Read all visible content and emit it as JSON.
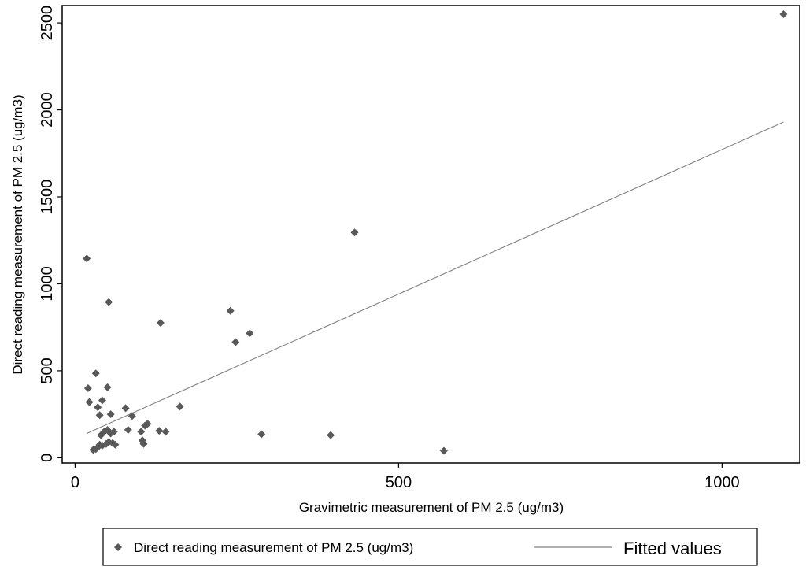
{
  "chart_data": {
    "type": "scatter",
    "title": "",
    "xlabel": "Gravimetric measurement of PM 2.5 (ug/m3)",
    "ylabel": "Direct reading measurement of PM 2.5 (ug/m3)",
    "xlim": [
      -20,
      1120
    ],
    "ylim": [
      -30,
      2600
    ],
    "xticks": [
      0,
      500,
      1000
    ],
    "yticks": [
      0,
      500,
      1000,
      1500,
      2000,
      2500
    ],
    "grid": false,
    "legend_position": "bottom",
    "series": [
      {
        "name": "Direct reading measurement of PM 2.5 (ug/m3)",
        "kind": "scatter",
        "marker": "diamond",
        "color": "#595959",
        "points": [
          [
            18,
            1145
          ],
          [
            20,
            400
          ],
          [
            22,
            320
          ],
          [
            32,
            485
          ],
          [
            35,
            290
          ],
          [
            38,
            245
          ],
          [
            42,
            330
          ],
          [
            50,
            405
          ],
          [
            52,
            895
          ],
          [
            55,
            250
          ],
          [
            28,
            45
          ],
          [
            32,
            50
          ],
          [
            35,
            60
          ],
          [
            38,
            75
          ],
          [
            40,
            130
          ],
          [
            42,
            70
          ],
          [
            45,
            150
          ],
          [
            48,
            80
          ],
          [
            50,
            160
          ],
          [
            52,
            90
          ],
          [
            55,
            140
          ],
          [
            58,
            85
          ],
          [
            60,
            150
          ],
          [
            62,
            75
          ],
          [
            78,
            285
          ],
          [
            82,
            160
          ],
          [
            88,
            240
          ],
          [
            102,
            150
          ],
          [
            104,
            100
          ],
          [
            106,
            80
          ],
          [
            108,
            185
          ],
          [
            112,
            195
          ],
          [
            130,
            155
          ],
          [
            132,
            775
          ],
          [
            140,
            150
          ],
          [
            162,
            295
          ],
          [
            240,
            845
          ],
          [
            248,
            665
          ],
          [
            270,
            715
          ],
          [
            288,
            135
          ],
          [
            395,
            130
          ],
          [
            432,
            1295
          ],
          [
            570,
            40
          ],
          [
            1095,
            2550
          ]
        ]
      },
      {
        "name": "Fitted values",
        "kind": "line",
        "color": "#808080",
        "points": [
          [
            18,
            140
          ],
          [
            1095,
            1930
          ]
        ]
      }
    ]
  },
  "colors": {
    "marker": "#595959",
    "fit_line": "#808080",
    "axis": "#000000"
  }
}
